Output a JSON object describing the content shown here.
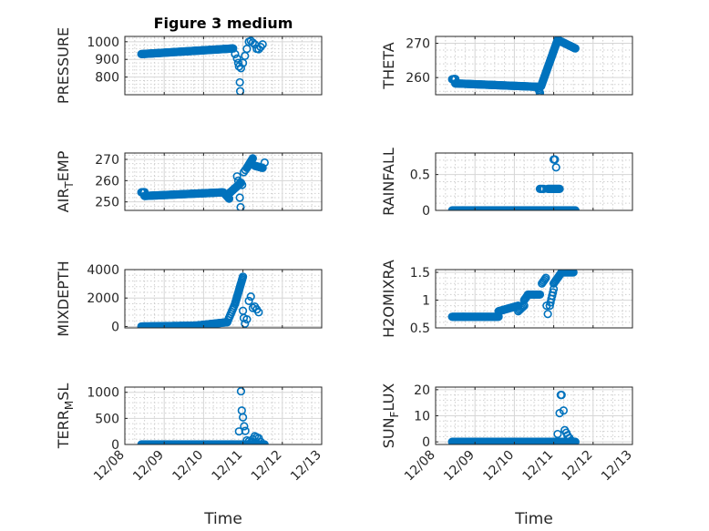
{
  "figure": {
    "background": "#ffffff",
    "marker_color": "#0072BD"
  },
  "chart_data": [
    {
      "type": "scatter",
      "title": "Figure 3 medium",
      "ylabel": "PRESSURE",
      "xlabel": "",
      "ylim": [
        700,
        1030
      ],
      "yticks": [
        800,
        900,
        1000
      ],
      "ytick_labels": [
        "800",
        "900",
        "1000"
      ],
      "xlim": [
        0,
        5
      ],
      "grid": true,
      "segments": [
        [
          0.42,
          930,
          2.75,
          962,
          140
        ]
      ],
      "points": [
        [
          2.8,
          930
        ],
        [
          2.85,
          905
        ],
        [
          2.88,
          880
        ],
        [
          2.9,
          860
        ],
        [
          2.92,
          770
        ],
        [
          2.93,
          720
        ],
        [
          2.95,
          850
        ],
        [
          3.0,
          880
        ],
        [
          3.05,
          920
        ],
        [
          3.1,
          960
        ],
        [
          3.15,
          1000
        ],
        [
          3.2,
          1005
        ],
        [
          3.25,
          995
        ],
        [
          3.3,
          985
        ],
        [
          3.35,
          960
        ],
        [
          3.4,
          958
        ],
        [
          3.45,
          970
        ],
        [
          3.5,
          985
        ]
      ]
    },
    {
      "type": "scatter",
      "title": "",
      "ylabel": "THETA",
      "xlabel": "",
      "ylim": [
        255,
        272
      ],
      "yticks": [
        260,
        270
      ],
      "ytick_labels": [
        "260",
        "270"
      ],
      "xlim": [
        0,
        5
      ],
      "grid": true,
      "segments": [
        [
          0.42,
          259.5,
          0.5,
          259.6,
          8
        ],
        [
          0.5,
          258.3,
          2.6,
          257.3,
          120
        ],
        [
          2.6,
          257.3,
          2.65,
          255.5,
          5
        ],
        [
          2.68,
          257.5,
          3.1,
          271,
          40
        ],
        [
          3.1,
          271,
          3.55,
          268.5,
          40
        ]
      ],
      "points": []
    },
    {
      "type": "scatter",
      "title": "",
      "ylabel": "AIR_TEMP",
      "xlabel": "",
      "ylim": [
        246,
        273
      ],
      "yticks": [
        250,
        260,
        270
      ],
      "ytick_labels": [
        "250",
        "260",
        "270"
      ],
      "xlim": [
        0,
        5
      ],
      "grid": true,
      "segments": [
        [
          0.42,
          254.5,
          0.5,
          254.6,
          8
        ],
        [
          0.5,
          252.8,
          2.5,
          254.5,
          110
        ],
        [
          2.55,
          253.5,
          2.65,
          251.5,
          6
        ],
        [
          2.65,
          254,
          2.95,
          259,
          24
        ],
        [
          3.1,
          266,
          3.25,
          270.5,
          12
        ],
        [
          3.3,
          267,
          3.5,
          266,
          14
        ]
      ],
      "points": [
        [
          2.85,
          262
        ],
        [
          2.88,
          260
        ],
        [
          2.92,
          252
        ],
        [
          2.94,
          247.5
        ],
        [
          2.98,
          258
        ],
        [
          3.02,
          264
        ],
        [
          3.06,
          265
        ],
        [
          3.55,
          268.5
        ]
      ]
    },
    {
      "type": "scatter",
      "title": "",
      "ylabel": "RAINFALL",
      "xlabel": "",
      "ylim": [
        0,
        0.8
      ],
      "yticks": [
        0,
        0.5
      ],
      "ytick_labels": [
        "0",
        "0.5"
      ],
      "xlim": [
        0,
        5
      ],
      "grid": true,
      "segments": [
        [
          0.42,
          0,
          3.55,
          0,
          170
        ],
        [
          2.65,
          0.3,
          2.75,
          0.3,
          4
        ],
        [
          2.85,
          0.3,
          3.15,
          0.3,
          14
        ]
      ],
      "points": [
        [
          3.0,
          0.71
        ],
        [
          3.03,
          0.71
        ],
        [
          3.06,
          0.6
        ]
      ]
    },
    {
      "type": "scatter",
      "title": "",
      "ylabel": "MIXDEPTH",
      "xlabel": "",
      "ylim": [
        -100,
        4000
      ],
      "yticks": [
        0,
        2000,
        4000
      ],
      "ytick_labels": [
        "0",
        "2000",
        "4000"
      ],
      "xlim": [
        0,
        5
      ],
      "grid": true,
      "segments": [
        [
          0.42,
          0,
          1.8,
          60,
          60
        ],
        [
          1.8,
          60,
          2.6,
          300,
          40
        ],
        [
          2.6,
          300,
          2.8,
          1600,
          10
        ],
        [
          2.8,
          1600,
          3.0,
          3500,
          20
        ]
      ],
      "points": [
        [
          3.0,
          1100
        ],
        [
          3.02,
          600
        ],
        [
          3.05,
          200
        ],
        [
          3.1,
          500
        ],
        [
          3.15,
          1800
        ],
        [
          3.2,
          2100
        ],
        [
          3.25,
          1300
        ],
        [
          3.3,
          1400
        ],
        [
          3.35,
          1200
        ],
        [
          3.4,
          1000
        ]
      ]
    },
    {
      "type": "scatter",
      "title": "",
      "ylabel": "H2OMIXRA",
      "xlabel": "",
      "ylim": [
        0.5,
        1.55
      ],
      "yticks": [
        0.5,
        1,
        1.5
      ],
      "ytick_labels": [
        "0.5",
        "1",
        "1.5"
      ],
      "xlim": [
        0,
        5
      ],
      "grid": true,
      "segments": [
        [
          0.42,
          0.7,
          1.6,
          0.7,
          70
        ],
        [
          1.6,
          0.8,
          2.1,
          0.9,
          30
        ],
        [
          2.1,
          0.8,
          2.25,
          0.9,
          6
        ],
        [
          2.25,
          1.0,
          2.35,
          1.1,
          6
        ],
        [
          2.35,
          1.1,
          2.65,
          1.1,
          14
        ],
        [
          2.7,
          1.3,
          2.8,
          1.4,
          5
        ],
        [
          2.9,
          0.9,
          3.0,
          1.2,
          6
        ],
        [
          3.0,
          1.3,
          3.2,
          1.5,
          10
        ],
        [
          3.2,
          1.5,
          3.5,
          1.5,
          16
        ]
      ],
      "points": [
        [
          2.82,
          0.9
        ],
        [
          2.85,
          0.75
        ]
      ]
    },
    {
      "type": "scatter",
      "title": "",
      "ylabel": "TERR_MSL",
      "xlabel": "Time",
      "ylim": [
        0,
        1100
      ],
      "yticks": [
        0,
        500,
        1000
      ],
      "ytick_labels": [
        "0",
        "500",
        "1000"
      ],
      "xlim": [
        0,
        5
      ],
      "grid": true,
      "xticks": [
        0,
        1,
        2,
        3,
        4,
        5
      ],
      "xtick_labels": [
        "12/08",
        "12/09",
        "12/10",
        "12/11",
        "12/12",
        "12/13"
      ],
      "segments": [
        [
          0.42,
          0,
          3.55,
          0,
          170
        ]
      ],
      "points": [
        [
          2.9,
          250
        ],
        [
          2.95,
          1020
        ],
        [
          2.97,
          650
        ],
        [
          3.0,
          520
        ],
        [
          3.03,
          350
        ],
        [
          3.06,
          260
        ],
        [
          3.1,
          80
        ],
        [
          3.15,
          60
        ],
        [
          3.2,
          40
        ],
        [
          3.25,
          100
        ],
        [
          3.3,
          160
        ],
        [
          3.35,
          140
        ],
        [
          3.4,
          120
        ],
        [
          3.45,
          50
        ]
      ]
    },
    {
      "type": "scatter",
      "title": "",
      "ylabel": "SUN_FLUX",
      "xlabel": "Time",
      "ylim": [
        -1,
        21
      ],
      "yticks": [
        0,
        10,
        20
      ],
      "ytick_labels": [
        "0",
        "10",
        "20"
      ],
      "xlim": [
        0,
        5
      ],
      "grid": true,
      "xticks": [
        0,
        1,
        2,
        3,
        4,
        5
      ],
      "xtick_labels": [
        "12/08",
        "12/09",
        "12/10",
        "12/11",
        "12/12",
        "12/13"
      ],
      "segments": [
        [
          0.42,
          0,
          3.55,
          0,
          170
        ]
      ],
      "points": [
        [
          3.1,
          3
        ],
        [
          3.15,
          11
        ],
        [
          3.18,
          18
        ],
        [
          3.2,
          18
        ],
        [
          3.25,
          12
        ],
        [
          3.28,
          4.5
        ],
        [
          3.32,
          3.5
        ],
        [
          3.35,
          2.5
        ],
        [
          3.4,
          1.5
        ],
        [
          3.45,
          0.5
        ]
      ]
    }
  ]
}
